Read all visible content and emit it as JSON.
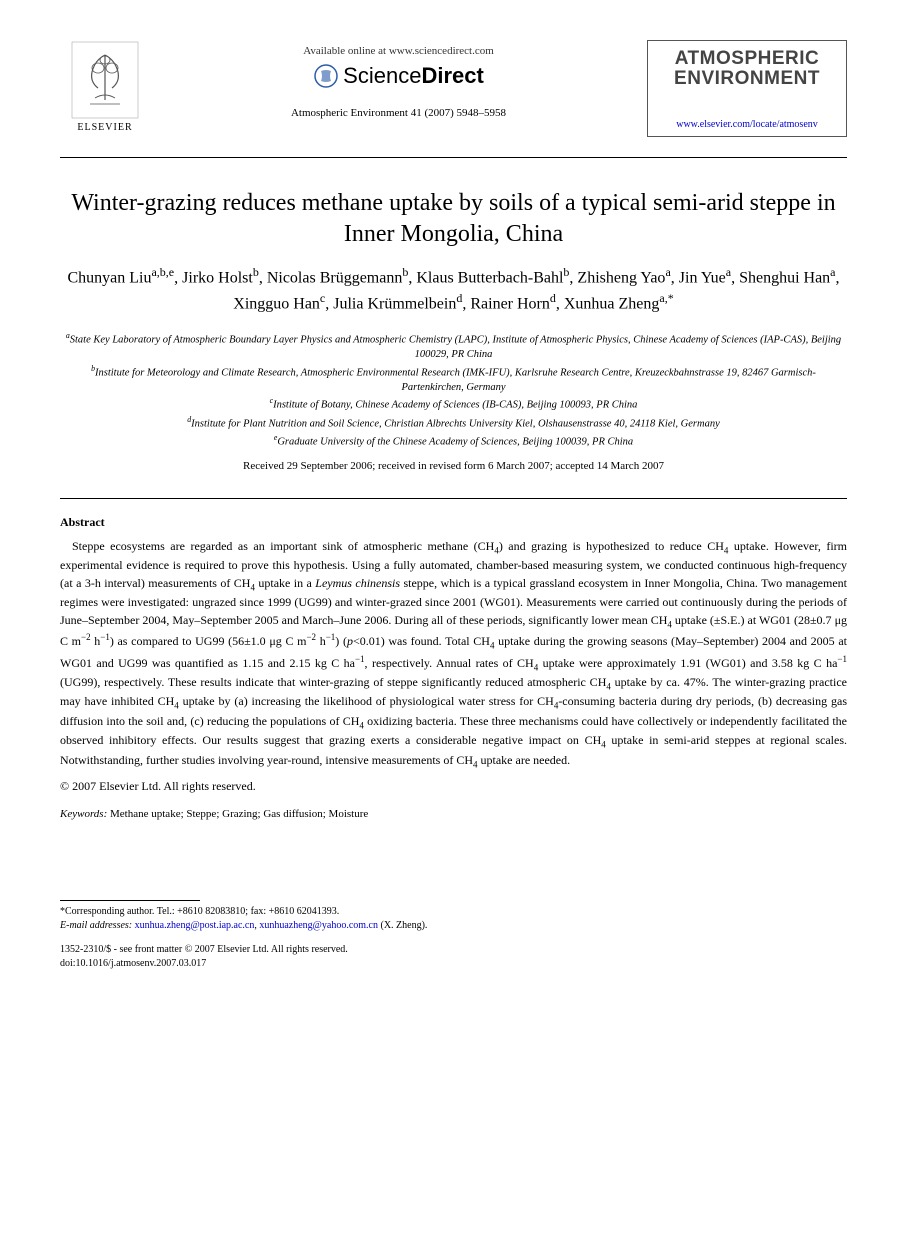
{
  "header": {
    "publisher_label": "ELSEVIER",
    "available_text": "Available online at www.sciencedirect.com",
    "sciencedirect": {
      "part1": "Science",
      "part2": "Direct"
    },
    "citation": "Atmospheric Environment 41 (2007) 5948–5958",
    "journal_name_line1": "ATMOSPHERIC",
    "journal_name_line2": "ENVIRONMENT",
    "journal_url": "www.elsevier.com/locate/atmosenv"
  },
  "title": "Winter-grazing reduces methane uptake by soils of a typical semi-arid steppe in Inner Mongolia, China",
  "authors_html": "Chunyan Liu<sup>a,b,e</sup>, Jirko Holst<sup>b</sup>, Nicolas Brüggemann<sup>b</sup>, Klaus Butterbach-Bahl<sup>b</sup>, Zhisheng Yao<sup>a</sup>, Jin Yue<sup>a</sup>, Shenghui Han<sup>a</sup>, Xingguo Han<sup>c</sup>, Julia Krümmelbein<sup>d</sup>, Rainer Horn<sup>d</sup>, Xunhua Zheng<sup>a,*</sup>",
  "affiliations": [
    "<sup>a</sup>State Key Laboratory of Atmospheric Boundary Layer Physics and Atmospheric Chemistry (LAPC), Institute of Atmospheric Physics, Chinese Academy of Sciences (IAP-CAS), Beijing 100029, PR China",
    "<sup>b</sup>Institute for Meteorology and Climate Research, Atmospheric Environmental Research (IMK-IFU), Karlsruhe Research Centre, Kreuzeckbahnstrasse 19, 82467 Garmisch-Partenkirchen, Germany",
    "<sup>c</sup>Institute of Botany, Chinese Academy of Sciences (IB-CAS), Beijing 100093, PR China",
    "<sup>d</sup>Institute for Plant Nutrition and Soil Science, Christian Albrechts University Kiel, Olshausenstrasse 40, 24118 Kiel, Germany",
    "<sup>e</sup>Graduate University of the Chinese Academy of Sciences, Beijing 100039, PR China"
  ],
  "dates": "Received 29 September 2006; received in revised form 6 March 2007; accepted 14 March 2007",
  "abstract": {
    "heading": "Abstract",
    "body_html": "Steppe ecosystems are regarded as an important sink of atmospheric methane (CH<sub>4</sub>) and grazing is hypothesized to reduce CH<sub>4</sub> uptake. However, firm experimental evidence is required to prove this hypothesis. Using a fully automated, chamber-based measuring system, we conducted continuous high-frequency (at a 3-h interval) measurements of CH<sub>4</sub> uptake in a <i>Leymus chinensis</i> steppe, which is a typical grassland ecosystem in Inner Mongolia, China. Two management regimes were investigated: ungrazed since 1999 (UG99) and winter-grazed since 2001 (WG01). Measurements were carried out continuously during the periods of June–September 2004, May–September 2005 and March–June 2006. During all of these periods, significantly lower mean CH<sub>4</sub> uptake (±S.E.) at WG01 (28±0.7 μg C m<sup>−2</sup> h<sup>−1</sup>) as compared to UG99 (56±1.0 μg C m<sup>−2</sup> h<sup>−1</sup>) (<i>p</i><0.01) was found. Total CH<sub>4</sub> uptake during the growing seasons (May–September) 2004 and 2005 at WG01 and UG99 was quantified as 1.15 and 2.15 kg C ha<sup>−1</sup>, respectively. Annual rates of CH<sub>4</sub> uptake were approximately 1.91 (WG01) and 3.58 kg C ha<sup>−1</sup> (UG99), respectively. These results indicate that winter-grazing of steppe significantly reduced atmospheric CH<sub>4</sub> uptake by ca. 47%. The winter-grazing practice may have inhibited CH<sub>4</sub> uptake by (a) increasing the likelihood of physiological water stress for CH<sub>4</sub>-consuming bacteria during dry periods, (b) decreasing gas diffusion into the soil and, (c) reducing the populations of CH<sub>4</sub> oxidizing bacteria. These three mechanisms could have collectively or independently facilitated the observed inhibitory effects. Our results suggest that grazing exerts a considerable negative impact on CH<sub>4</sub> uptake in semi-arid steppes at regional scales. Notwithstanding, further studies involving year-round, intensive measurements of CH<sub>4</sub> uptake are needed.",
    "copyright": "© 2007 Elsevier Ltd. All rights reserved."
  },
  "keywords": {
    "label": "Keywords:",
    "list": "Methane uptake; Steppe; Grazing; Gas diffusion; Moisture"
  },
  "footnote": {
    "corresponding": "*Corresponding author. Tel.: +8610 82083810; fax: +8610 62041393.",
    "email_label": "E-mail addresses:",
    "email1": "xunhua.zheng@post.iap.ac.cn",
    "email2": "xunhuazheng@yahoo.com.cn",
    "email_tail": "(X. Zheng)."
  },
  "bottom": {
    "issn_line": "1352-2310/$ - see front matter © 2007 Elsevier Ltd. All rights reserved.",
    "doi_line": "doi:10.1016/j.atmosenv.2007.03.017"
  },
  "colors": {
    "text": "#000000",
    "link": "#0000cc",
    "background": "#ffffff",
    "journal_title": "#444444",
    "elsevier_orange": "#e67700"
  }
}
